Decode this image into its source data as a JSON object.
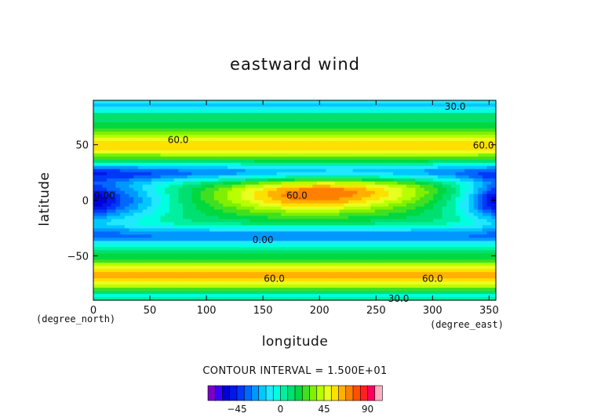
{
  "title": "eastward wind",
  "xlabel": "longitude",
  "ylabel": "latitude",
  "x_unit": "(degree_east)",
  "y_unit": "(degree_north)",
  "contour_interval_text": "CONTOUR INTERVAL = 1.500E+01",
  "chart_data": {
    "type": "heatmap",
    "title": "eastward wind",
    "xlabel": "longitude",
    "ylabel": "latitude",
    "xlim": [
      0,
      356
    ],
    "ylim": [
      -90,
      90
    ],
    "x_ticks": [
      0,
      50,
      100,
      150,
      200,
      250,
      300,
      350
    ],
    "y_ticks": [
      -50,
      0,
      50
    ],
    "x_tick_labels": [
      "0",
      "50",
      "100",
      "150",
      "200",
      "250",
      "300",
      "350"
    ],
    "y_tick_labels": [
      "−50",
      "0",
      "50"
    ],
    "contour_interval": 15,
    "contour_labels": [
      "60.0",
      "30.0",
      "0.00"
    ],
    "colorbar": {
      "levels": [
        -75,
        -67.5,
        -60,
        -52.5,
        -45,
        -37.5,
        -30,
        -22.5,
        -15,
        -7.5,
        0,
        7.5,
        15,
        22.5,
        30,
        37.5,
        45,
        52.5,
        60,
        67.5,
        75,
        82.5,
        90,
        97.5,
        105
      ],
      "tick_values": [
        -45,
        0,
        45,
        90
      ],
      "tick_labels": [
        "−45",
        "0",
        "45",
        "90"
      ],
      "colors": [
        "#7a00c8",
        "#3a00ff",
        "#0000d8",
        "#0018e8",
        "#0038f8",
        "#0068ff",
        "#0098ff",
        "#00c8ff",
        "#20e8ff",
        "#00ffe0",
        "#00f0a0",
        "#00e070",
        "#00d840",
        "#40e020",
        "#80f000",
        "#b8ff00",
        "#e8ff20",
        "#ffe000",
        "#ffb000",
        "#ff8000",
        "#ff5000",
        "#ff2020",
        "#ff0060",
        "#ffb0c0"
      ]
    },
    "features": [
      {
        "label": "60.0",
        "lon": 75,
        "lat": 55,
        "value": 60
      },
      {
        "label": "60.0",
        "lon": 345,
        "lat": 50,
        "value": 60
      },
      {
        "label": "60.0",
        "lon": 180,
        "lat": 5,
        "value": 65
      },
      {
        "label": "60.0",
        "lon": 160,
        "lat": -70,
        "value": 60
      },
      {
        "label": "60.0",
        "lon": 300,
        "lat": -70,
        "value": 60
      },
      {
        "label": "30.0",
        "lon": 320,
        "lat": 85,
        "value": 30
      },
      {
        "label": "30.0",
        "lon": 270,
        "lat": -88,
        "value": 30
      },
      {
        "label": "0.00",
        "lon": 10,
        "lat": 5,
        "value": -40
      },
      {
        "label": "0.00",
        "lon": 150,
        "lat": -35,
        "value": -5
      }
    ]
  }
}
